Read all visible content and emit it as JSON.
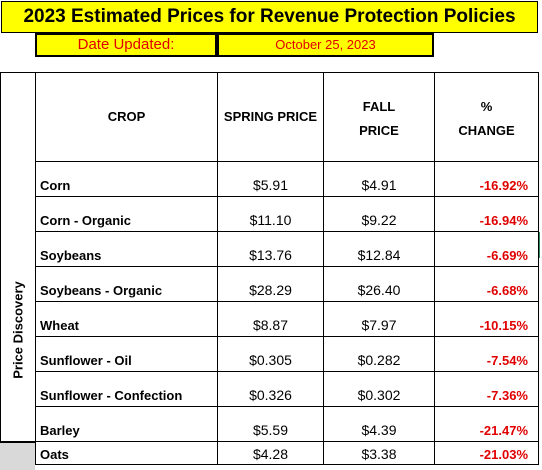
{
  "title": "2023 Estimated Prices for Revenue Protection Policies",
  "date": {
    "label": "Date Updated:",
    "value": "October 25, 2023"
  },
  "side_label": "Price Discovery",
  "headers": {
    "crop": "CROP",
    "spring": "SPRING PRICE",
    "fall_line1": "FALL",
    "fall_line2": "PRICE",
    "change_line1": "%",
    "change_line2": "CHANGE"
  },
  "rows": [
    {
      "crop": "Corn",
      "spring": "$5.91",
      "fall": "$4.91",
      "change": "-16.92%"
    },
    {
      "crop": "Corn - Organic",
      "spring": "$11.10",
      "fall": "$9.22",
      "change": "-16.94%"
    },
    {
      "crop": "Soybeans",
      "spring": "$13.76",
      "fall": "$12.84",
      "change": "-6.69%"
    },
    {
      "crop": "Soybeans - Organic",
      "spring": "$28.29",
      "fall": "$26.40",
      "change": "-6.68%"
    },
    {
      "crop": "Wheat",
      "spring": "$8.87",
      "fall": "$7.97",
      "change": "-10.15%"
    },
    {
      "crop": "Sunflower - Oil",
      "spring": "$0.305",
      "fall": "$0.282",
      "change": "-7.54%"
    },
    {
      "crop": "Sunflower - Confection",
      "spring": "$0.326",
      "fall": "$0.302",
      "change": "-7.36%"
    },
    {
      "crop": "Barley",
      "spring": "$5.59",
      "fall": "$4.39",
      "change": "-21.47%"
    },
    {
      "crop": "Oats",
      "spring": "$4.28",
      "fall": "$3.38",
      "change": "-21.03%"
    }
  ],
  "colors": {
    "title_bg": "#ffff00",
    "negative_change": "#e00000",
    "row_header_grey": "#d9d9d9"
  }
}
